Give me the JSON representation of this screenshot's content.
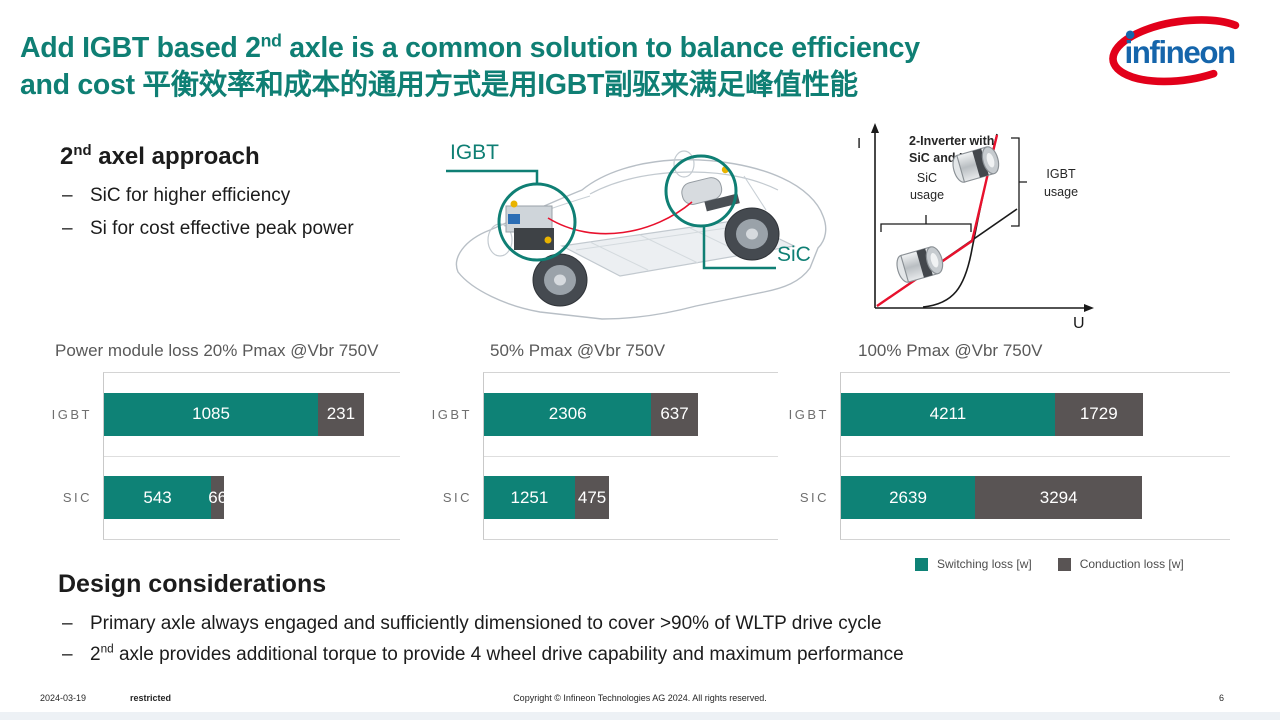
{
  "colors": {
    "teal": "#0f7f74",
    "bar-teal": "#0e8276",
    "bar-gray": "#595454",
    "logo-blue": "#1565ab",
    "logo-red": "#e2001a",
    "line-red": "#e8112d"
  },
  "slide": {
    "title": {
      "line1_pre": "Add IGBT based 2",
      "line1_sup": "nd",
      "line1_post": " axle is a common solution to balance efficiency",
      "line2": "and cost 平衡效率和成本的通用方式是用IGBT副驱来满足峰值性能"
    }
  },
  "logo": {
    "text": "infineon"
  },
  "ui": {
    "bullet_marker": "–"
  },
  "approach": {
    "heading_pre": "2",
    "heading_sup": "nd",
    "heading_post": " axel approach",
    "bullets": [
      "SiC for higher efficiency",
      "Si for cost effective peak power"
    ]
  },
  "car": {
    "label_igbt": "IGBT",
    "label_sic": "SiC"
  },
  "iu_chart": {
    "title1": "2-Inverter with",
    "title2": "SiC and IGBT",
    "y_axis": "I",
    "x_axis": "U",
    "sic1": "SiC",
    "sic2": "usage",
    "igbt1": "IGBT",
    "igbt2": "usage"
  },
  "chart_data": [
    {
      "type": "bar",
      "orientation": "horizontal",
      "stacked": true,
      "title": "Power module loss 20% Pmax @Vbr 750V",
      "categories": [
        "IGBT",
        "SIC"
      ],
      "series": [
        {
          "name": "Switching loss [w]",
          "values": [
            1085,
            543
          ]
        },
        {
          "name": "Conduction loss [w]",
          "values": [
            231,
            66
          ]
        }
      ],
      "xmax": 1500,
      "xlim": [
        0,
        1500
      ],
      "grid": false,
      "legend_position": "bottom-right-shared"
    },
    {
      "type": "bar",
      "orientation": "horizontal",
      "stacked": true,
      "title": "50% Pmax @Vbr 750V",
      "categories": [
        "IGBT",
        "SIC"
      ],
      "series": [
        {
          "name": "Switching loss [w]",
          "values": [
            2306,
            1251
          ]
        },
        {
          "name": "Conduction loss [w]",
          "values": [
            637,
            475
          ]
        }
      ],
      "xmax": 4050,
      "xlim": [
        0,
        4050
      ],
      "grid": false,
      "legend_position": "bottom-right-shared"
    },
    {
      "type": "bar",
      "orientation": "horizontal",
      "stacked": true,
      "title": "100% Pmax @Vbr 750V",
      "categories": [
        "IGBT",
        "SIC"
      ],
      "series": [
        {
          "name": "Switching loss [w]",
          "values": [
            4211,
            2639
          ]
        },
        {
          "name": "Conduction loss [w]",
          "values": [
            1729,
            3294
          ]
        }
      ],
      "xmax": 7660,
      "xlim": [
        0,
        7660
      ],
      "grid": false,
      "legend_position": "bottom-right-shared"
    }
  ],
  "legend": [
    {
      "label": "Switching loss [w]",
      "color": "#0e8276"
    },
    {
      "label": "Conduction loss [w]",
      "color": "#595454"
    }
  ],
  "design": {
    "heading": "Design considerations",
    "bullets": [
      {
        "pre": "Primary axle always engaged and sufficiently dimensioned to cover >90% of WLTP drive cycle",
        "sup": "",
        "post": ""
      },
      {
        "pre": "2",
        "sup": "nd",
        "post": " axle provides additional torque to provide 4 wheel drive capability and maximum performance"
      }
    ]
  },
  "footer": {
    "date": "2024-03-19",
    "classification": "restricted",
    "copyright": "Copyright © Infineon Technologies AG 2024. All rights reserved.",
    "page": "6"
  }
}
